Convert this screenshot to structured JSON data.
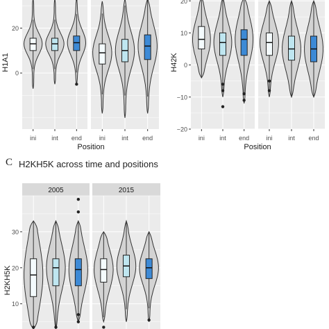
{
  "figure": {
    "panel_c_letter": "C",
    "panel_c_title": "H2KH5K across time and positions"
  },
  "colors": {
    "panel_bg": "#ebebeb",
    "grid": "#ffffff",
    "strip_bg": "#d9d9d9",
    "violin_fill": "#d3d3d3",
    "violin_stroke": "#333333",
    "ini": "#f4fbfd",
    "int": "#bfe6f0",
    "end": "#3d8ad6"
  },
  "chart_data": [
    {
      "type": "violin",
      "ylabel": "H1A1",
      "xlabel": "Position",
      "categories": [
        "ini",
        "int",
        "end"
      ],
      "yticks": [
        0,
        20
      ],
      "ylim": [
        -25,
        35
      ],
      "grid": true,
      "facets": [
        {
          "label": "",
          "violins": [
            {
              "category": "ini",
              "min": -7,
              "q1": 10,
              "median": 13,
              "q3": 15.5,
              "max": 33,
              "outliers": []
            },
            {
              "category": "int",
              "min": -5,
              "q1": 10,
              "median": 13,
              "q3": 15.5,
              "max": 33,
              "outliers": []
            },
            {
              "category": "end",
              "min": -5,
              "q1": 10,
              "median": 13.5,
              "q3": 16.5,
              "max": 33,
              "outliers": [
                -5,
                33
              ]
            }
          ]
        },
        {
          "label": "",
          "violins": [
            {
              "category": "ini",
              "min": -18,
              "q1": 4,
              "median": 9,
              "q3": 13,
              "max": 32,
              "outliers": [
                34
              ]
            },
            {
              "category": "int",
              "min": -20,
              "q1": 5,
              "median": 10,
              "q3": 15,
              "max": 33,
              "outliers": [
                35
              ]
            },
            {
              "category": "end",
              "min": -18,
              "q1": 6,
              "median": 12,
              "q3": 17,
              "max": 33,
              "outliers": [
                33
              ]
            }
          ]
        }
      ]
    },
    {
      "type": "violin",
      "ylabel": "H42K",
      "xlabel": "Position",
      "categories": [
        "ini",
        "int",
        "end"
      ],
      "yticks": [
        -20,
        -10,
        0,
        10,
        20
      ],
      "ylim": [
        -20,
        22
      ],
      "grid": true,
      "facets": [
        {
          "label": "",
          "violins": [
            {
              "category": "ini",
              "min": -4,
              "q1": 5,
              "median": 8,
              "q3": 12,
              "max": 21,
              "outliers": []
            },
            {
              "category": "int",
              "min": -10,
              "q1": 3,
              "median": 7,
              "q3": 10,
              "max": 21,
              "outliers": [
                -6,
                -8,
                -13
              ]
            },
            {
              "category": "end",
              "min": -12,
              "q1": 3,
              "median": 8,
              "q3": 11,
              "max": 21,
              "outliers": [
                -9,
                -11
              ]
            }
          ]
        },
        {
          "label": "",
          "violins": [
            {
              "category": "ini",
              "min": -10,
              "q1": 3,
              "median": 7,
              "q3": 10,
              "max": 20,
              "outliers": [
                -8,
                -5
              ]
            },
            {
              "category": "int",
              "min": -10,
              "q1": 1.5,
              "median": 5,
              "q3": 9,
              "max": 20,
              "outliers": []
            },
            {
              "category": "end",
              "min": -10,
              "q1": 1,
              "median": 5,
              "q3": 9,
              "max": 20,
              "outliers": []
            }
          ]
        }
      ]
    },
    {
      "type": "violin",
      "title": "H2KH5K across time and positions",
      "ylabel": "H2KH5K",
      "xlabel": "",
      "categories": [
        "ini",
        "int",
        "end"
      ],
      "yticks": [
        10,
        20,
        30
      ],
      "ylim": [
        3,
        40
      ],
      "grid": true,
      "facets": [
        {
          "label": "2005",
          "violins": [
            {
              "category": "ini",
              "min": 3,
              "q1": 12,
              "median": 18,
              "q3": 22.5,
              "max": 33,
              "outliers": [
                3.5
              ]
            },
            {
              "category": "int",
              "min": 3,
              "q1": 15,
              "median": 20,
              "q3": 22.5,
              "max": 33,
              "outliers": [
                3.5
              ]
            },
            {
              "category": "end",
              "min": 5,
              "q1": 15,
              "median": 19.5,
              "q3": 22.5,
              "max": 33,
              "outliers": [
                35.5,
                39,
                7,
                5
              ]
            }
          ]
        },
        {
          "label": "2015",
          "violins": [
            {
              "category": "ini",
              "min": 5,
              "q1": 16,
              "median": 19.5,
              "q3": 22.5,
              "max": 30,
              "outliers": [
                3.5
              ]
            },
            {
              "category": "int",
              "min": 5,
              "q1": 17.5,
              "median": 20.5,
              "q3": 23.5,
              "max": 33,
              "outliers": []
            },
            {
              "category": "end",
              "min": 5,
              "q1": 17,
              "median": 20,
              "q3": 22.5,
              "max": 30,
              "outliers": [
                5.5
              ]
            }
          ]
        }
      ]
    }
  ]
}
